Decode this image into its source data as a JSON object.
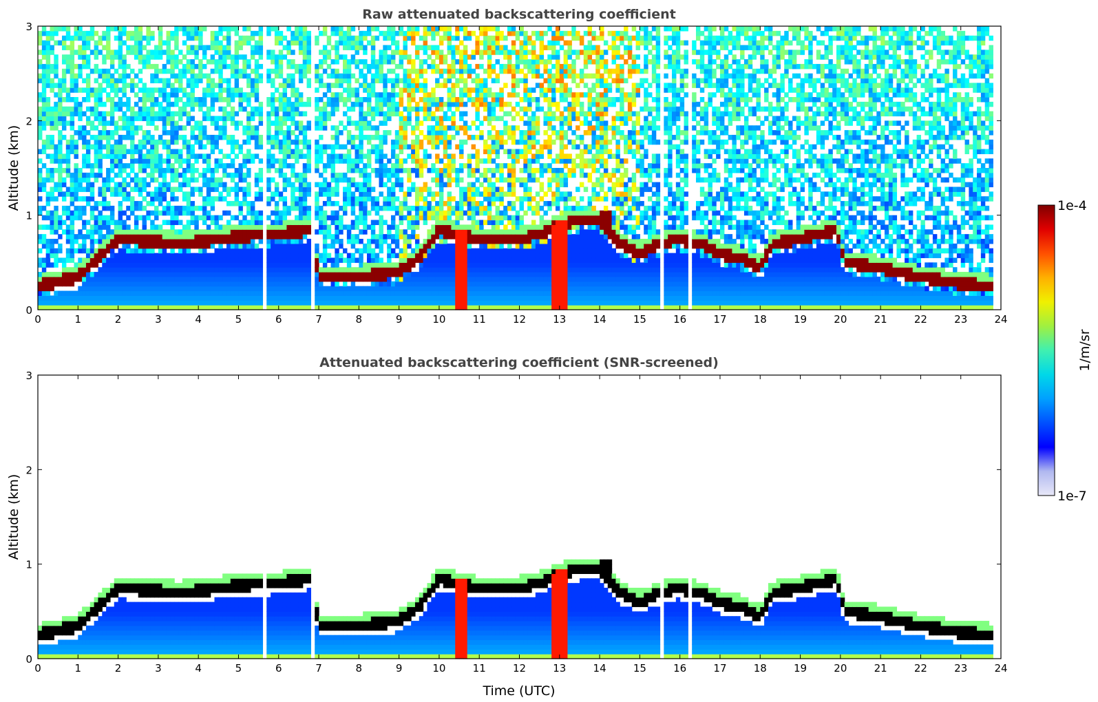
{
  "figure": {
    "colorbar": {
      "max_label": "1e-4",
      "min_label": "1e-7",
      "unit_label": "1/m/sr",
      "scale": "log",
      "range": [
        1e-07,
        0.0001
      ],
      "colormap": "jet",
      "ramp_colors": [
        "#e8e8f8",
        "#b0b8f0",
        "#0000ff",
        "#0050ff",
        "#00a0ff",
        "#00d8e8",
        "#40f0b0",
        "#a0f040",
        "#f0f000",
        "#ffb000",
        "#ff5000",
        "#e00000",
        "#800000"
      ]
    }
  },
  "chart_data": [
    {
      "type": "heatmap",
      "title": "Raw attenuated backscattering coefficient",
      "xlabel": "",
      "ylabel": "Altitude (km)",
      "xlim": [
        0,
        24
      ],
      "ylim": [
        0,
        3
      ],
      "xticks": [
        "0",
        "1",
        "2",
        "3",
        "4",
        "5",
        "6",
        "7",
        "8",
        "9",
        "10",
        "11",
        "12",
        "13",
        "14",
        "15",
        "16",
        "17",
        "18",
        "19",
        "20",
        "21",
        "22",
        "23",
        "24"
      ],
      "yticks": [
        "0",
        "1",
        "2",
        "3"
      ],
      "x_tick_values": [
        0,
        1,
        2,
        3,
        4,
        5,
        6,
        7,
        8,
        9,
        10,
        11,
        12,
        13,
        14,
        15,
        16,
        17,
        18,
        19,
        20,
        21,
        22,
        23,
        24
      ],
      "y_tick_values": [
        0,
        1,
        2,
        3
      ],
      "data_gaps_hours": [
        [
          5.62,
          5.72
        ],
        [
          6.78,
          6.92
        ],
        [
          15.48,
          15.55
        ],
        [
          16.22,
          16.28
        ],
        [
          16.38,
          16.42
        ]
      ],
      "layer_top_km": {
        "x": [
          0,
          1,
          2,
          3,
          3.5,
          4,
          5,
          6,
          6.8,
          7,
          8,
          9,
          9.5,
          10,
          10.5,
          11,
          12,
          12.5,
          13,
          13.5,
          14,
          14.5,
          15,
          15.5,
          16,
          16.5,
          17,
          17.5,
          18,
          18.3,
          19,
          19.5,
          19.9,
          20.1,
          21,
          22,
          23,
          23.8
        ],
        "y": [
          0.25,
          0.35,
          0.75,
          0.72,
          0.7,
          0.72,
          0.78,
          0.8,
          0.85,
          0.35,
          0.35,
          0.4,
          0.55,
          0.85,
          0.8,
          0.75,
          0.75,
          0.8,
          0.9,
          0.95,
          0.95,
          0.7,
          0.6,
          0.7,
          0.75,
          0.7,
          0.6,
          0.55,
          0.45,
          0.7,
          0.75,
          0.8,
          0.85,
          0.5,
          0.45,
          0.35,
          0.28,
          0.25
        ]
      },
      "aerosol_layer_km": {
        "x": [
          0,
          1,
          2,
          3,
          4,
          5,
          6,
          6.8
        ],
        "y": [
          0.25,
          0.35,
          0.75,
          0.72,
          0.7,
          0.7,
          0.7,
          0.72
        ]
      },
      "plume_hours": [
        10.55,
        13.0
      ],
      "elevated_clouds": [
        {
          "x_range": [
            13.3,
            13.6
          ],
          "y_km": 0.95
        },
        {
          "x_range": [
            14.0,
            14.3
          ],
          "y_km": 0.97
        }
      ],
      "noise_level": 1.0
    },
    {
      "type": "heatmap",
      "title": "Attenuated backscattering coefficient (SNR-screened)",
      "xlabel": "Time (UTC)",
      "ylabel": "Altitude (km)",
      "xlim": [
        0,
        24
      ],
      "ylim": [
        0,
        3
      ],
      "xticks": [
        "0",
        "1",
        "2",
        "3",
        "4",
        "5",
        "6",
        "7",
        "8",
        "9",
        "10",
        "11",
        "12",
        "13",
        "14",
        "15",
        "16",
        "17",
        "18",
        "19",
        "20",
        "21",
        "22",
        "23",
        "24"
      ],
      "yticks": [
        "0",
        "1",
        "2",
        "3"
      ],
      "x_tick_values": [
        0,
        1,
        2,
        3,
        4,
        5,
        6,
        7,
        8,
        9,
        10,
        11,
        12,
        13,
        14,
        15,
        16,
        17,
        18,
        19,
        20,
        21,
        22,
        23,
        24
      ],
      "y_tick_values": [
        0,
        1,
        2,
        3
      ],
      "data_gaps_hours": [
        [
          5.62,
          5.72
        ],
        [
          6.78,
          6.92
        ],
        [
          15.48,
          15.55
        ],
        [
          16.22,
          16.28
        ],
        [
          16.38,
          16.42
        ]
      ],
      "layer_top_km": {
        "x": [
          0,
          1,
          2,
          3,
          3.5,
          4,
          5,
          6,
          6.8,
          7,
          8,
          9,
          9.5,
          10,
          10.5,
          11,
          12,
          12.5,
          13,
          13.5,
          14,
          14.5,
          15,
          15.5,
          16,
          16.5,
          17,
          17.5,
          18,
          18.3,
          19,
          19.5,
          19.9,
          20.1,
          21,
          22,
          23,
          23.8
        ],
        "y": [
          0.25,
          0.35,
          0.75,
          0.72,
          0.7,
          0.72,
          0.78,
          0.8,
          0.85,
          0.35,
          0.35,
          0.4,
          0.55,
          0.85,
          0.8,
          0.75,
          0.75,
          0.8,
          0.9,
          0.95,
          0.95,
          0.7,
          0.6,
          0.7,
          0.75,
          0.7,
          0.6,
          0.55,
          0.45,
          0.7,
          0.75,
          0.8,
          0.85,
          0.5,
          0.45,
          0.35,
          0.28,
          0.25
        ]
      },
      "aerosol_layer_km": {
        "x": [
          0,
          1,
          2,
          3,
          4,
          5,
          6,
          6.8
        ],
        "y": [
          0.25,
          0.35,
          0.75,
          0.72,
          0.7,
          0.7,
          0.7,
          0.72
        ]
      },
      "plume_hours": [
        10.55,
        13.0
      ],
      "elevated_clouds": [
        {
          "x_range": [
            13.3,
            13.6
          ],
          "y_km": 0.95
        },
        {
          "x_range": [
            14.0,
            14.3
          ],
          "y_km": 0.97
        }
      ],
      "noise_level": 0.0,
      "saturated_color": "#000000"
    }
  ]
}
